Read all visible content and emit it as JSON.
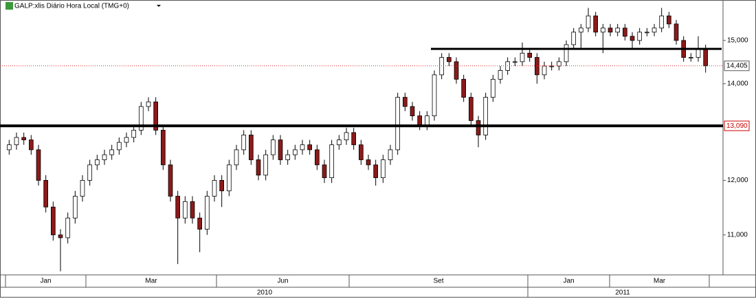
{
  "chart_data": {
    "type": "candlestick",
    "title": "GALP:xlis Diário Hora Local (TMG+0)",
    "log": true,
    "ylim": [
      10320,
      16000
    ],
    "yticks": [
      {
        "value": 11000,
        "label": "11,000"
      },
      {
        "value": 12000,
        "label": "12,000"
      },
      {
        "value": 14000,
        "label": "14,000"
      },
      {
        "value": 15000,
        "label": "15,000"
      }
    ],
    "up_color": "#ffffff",
    "down_color": "#8b1a1a",
    "open": [
      12600,
      12700,
      12850,
      12800,
      12600,
      12000,
      11500,
      11000,
      10950,
      11300,
      11700,
      12000,
      12300,
      12400,
      12500,
      12600,
      12750,
      12850,
      13000,
      13500,
      13600,
      13000,
      12300,
      11700,
      11300,
      11600,
      11300,
      11100,
      11700,
      12000,
      11800,
      12300,
      12600,
      12900,
      12400,
      12100,
      12500,
      12800,
      12400,
      12500,
      12600,
      12700,
      12600,
      12300,
      12050,
      12700,
      12800,
      12950,
      12700,
      12400,
      12300,
      12050,
      12400,
      12600,
      13700,
      13500,
      13300,
      13100,
      13300,
      14200,
      14600,
      14500,
      14100,
      13700,
      13200,
      12900,
      13700,
      14100,
      14300,
      14500,
      14500,
      14700,
      14600,
      14200,
      14400,
      14400,
      14500,
      14900,
      15200,
      15300,
      15600,
      15200,
      15300,
      15200,
      15300,
      15100,
      15000,
      15200,
      15200,
      15300,
      15600,
      15400,
      15000,
      14600,
      14600,
      14800
    ],
    "high": [
      12800,
      12950,
      12950,
      12900,
      12700,
      12100,
      11600,
      11100,
      11400,
      11800,
      12100,
      12400,
      12500,
      12600,
      12700,
      12850,
      12950,
      13100,
      13600,
      13700,
      13700,
      13100,
      12400,
      11800,
      11700,
      11700,
      11400,
      11800,
      12100,
      12100,
      12400,
      12700,
      13000,
      13000,
      12500,
      12600,
      12900,
      12900,
      12600,
      12700,
      12800,
      12800,
      12700,
      12400,
      12800,
      12900,
      13050,
      13050,
      12800,
      12500,
      12400,
      12500,
      12700,
      13800,
      13800,
      13600,
      13400,
      13400,
      14300,
      14700,
      14700,
      14600,
      14200,
      13800,
      13300,
      13800,
      14200,
      14400,
      14600,
      14600,
      14950,
      14800,
      14700,
      14500,
      14500,
      14600,
      15000,
      15300,
      15400,
      15800,
      15700,
      15400,
      15400,
      15400,
      15400,
      15200,
      15300,
      15300,
      15400,
      15800,
      15700,
      15500,
      15100,
      14700,
      15100,
      14900
    ],
    "low": [
      12500,
      12600,
      12700,
      12500,
      11900,
      11400,
      10900,
      10380,
      10850,
      11200,
      11600,
      11900,
      12200,
      12300,
      12400,
      12500,
      12650,
      12750,
      12900,
      13400,
      12900,
      12200,
      11600,
      10500,
      11200,
      11200,
      10700,
      11000,
      11600,
      11500,
      11700,
      12200,
      12500,
      12300,
      12000,
      12000,
      12400,
      12300,
      12300,
      12400,
      12500,
      12500,
      12200,
      11950,
      11950,
      12600,
      12700,
      12600,
      12300,
      12200,
      11900,
      11950,
      12300,
      12500,
      13400,
      13200,
      13000,
      13000,
      13200,
      14100,
      14400,
      14000,
      13600,
      13100,
      12650,
      12800,
      13600,
      14000,
      14200,
      14400,
      14400,
      14500,
      14000,
      14100,
      14300,
      14300,
      14400,
      14800,
      14800,
      15200,
      15100,
      14700,
      15100,
      15100,
      15000,
      14800,
      14900,
      15100,
      15100,
      15200,
      15300,
      14900,
      14500,
      14500,
      14500,
      14250
    ],
    "close": [
      12700,
      12850,
      12800,
      12600,
      12000,
      11500,
      11000,
      10950,
      11300,
      11700,
      12000,
      12300,
      12400,
      12500,
      12600,
      12750,
      12850,
      13000,
      13500,
      13600,
      13000,
      12300,
      11700,
      11300,
      11600,
      11300,
      11100,
      11700,
      12000,
      11800,
      12300,
      12600,
      12900,
      12400,
      12100,
      12500,
      12800,
      12400,
      12500,
      12600,
      12700,
      12600,
      12300,
      12050,
      12700,
      12800,
      12950,
      12700,
      12400,
      12300,
      12050,
      12400,
      12600,
      13700,
      13500,
      13300,
      13100,
      13300,
      14200,
      14600,
      14500,
      14100,
      13700,
      13200,
      12900,
      13700,
      14100,
      14300,
      14500,
      14500,
      14700,
      14600,
      14200,
      14400,
      14400,
      14500,
      14900,
      15200,
      15300,
      15600,
      15200,
      15300,
      15200,
      15300,
      15100,
      15000,
      15200,
      15200,
      15300,
      15600,
      15400,
      15000,
      14600,
      14600,
      14800,
      14405
    ],
    "support_line": {
      "value": 13090,
      "label": "13,090"
    },
    "resistance_line": {
      "value": 14800
    },
    "last_price": {
      "value": 14405,
      "label": "14,405"
    },
    "x_labels": [
      "Jan",
      "Mar",
      "Jun",
      "Set",
      "Jan",
      "Mar"
    ],
    "year_labels": [
      "2010",
      "2011"
    ]
  }
}
